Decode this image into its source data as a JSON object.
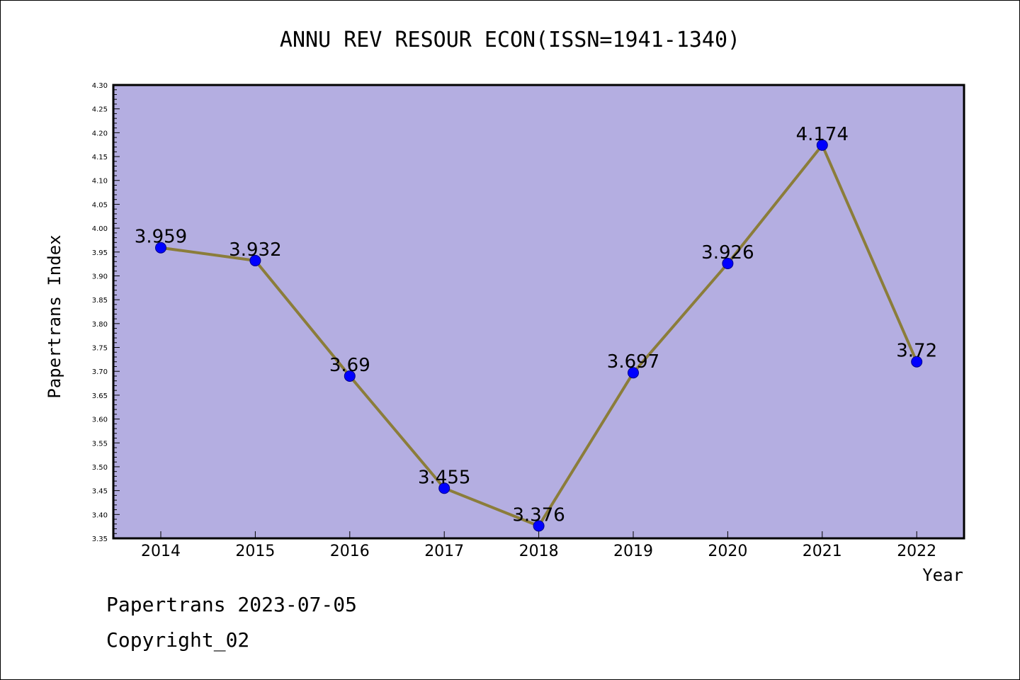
{
  "chart_data": {
    "type": "line",
    "title": "ANNU REV RESOUR ECON(ISSN=1941-1340)",
    "xlabel": "Year",
    "ylabel": "Papertrans Index",
    "categories": [
      "2014",
      "2015",
      "2016",
      "2017",
      "2018",
      "2019",
      "2020",
      "2021",
      "2022"
    ],
    "values": [
      3.959,
      3.932,
      3.69,
      3.455,
      3.376,
      3.697,
      3.926,
      4.174,
      3.72
    ],
    "data_labels": [
      "3.959",
      "3.932",
      "3.69",
      "3.455",
      "3.376",
      "3.697",
      "3.926",
      "4.174",
      "3.72"
    ],
    "ylim": [
      3.35,
      4.3
    ],
    "yticks": [
      "3.35",
      "3.40",
      "3.45",
      "3.50",
      "3.55",
      "3.60",
      "3.65",
      "3.70",
      "3.75",
      "3.80",
      "3.85",
      "3.90",
      "3.95",
      "4.00",
      "4.05",
      "4.10",
      "4.15",
      "4.20",
      "4.25",
      "4.30"
    ],
    "grid": false,
    "colors": {
      "plot_background": "#b4aee1",
      "line": "#8b7d3a",
      "marker": "#0000ff",
      "frame": "#000000"
    }
  },
  "footer": {
    "line1": "Papertrans 2023-07-05",
    "line2": "Copyright_02"
  }
}
